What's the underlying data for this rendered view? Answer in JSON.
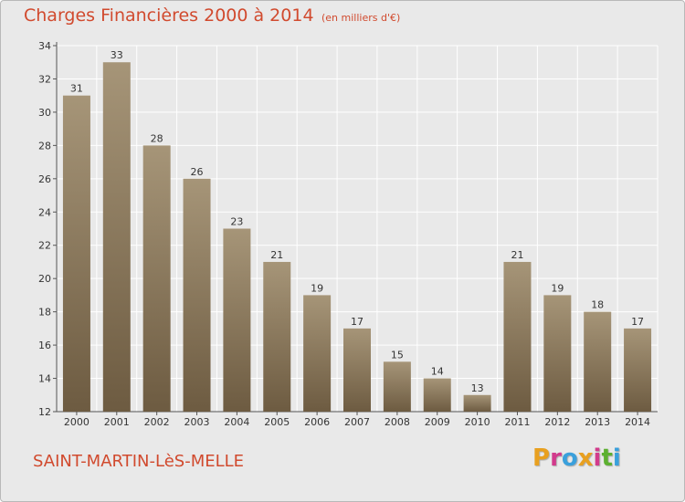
{
  "header": {
    "title": "Charges Financières 2000 à 2014",
    "unit": "(en milliers d'€)"
  },
  "footer": {
    "commune": "SAINT-MARTIN-LèS-MELLE",
    "brand": "Proxiti",
    "brand_colors": [
      "#e8a020",
      "#d23b8c",
      "#3aa0dc",
      "#e8a020",
      "#d23b8c",
      "#5cb030",
      "#3aa0dc"
    ]
  },
  "colors": {
    "bar_top": "#a69578",
    "bar_bottom": "#6d5b41",
    "plot_background": "#e9e9e9",
    "grid": "#ffffff",
    "title": "#d14a2e"
  },
  "chart_data": {
    "type": "bar",
    "title": "Charges Financières 2000 à 2014",
    "xlabel": "",
    "ylabel": "",
    "categories": [
      "2000",
      "2001",
      "2002",
      "2003",
      "2004",
      "2005",
      "2006",
      "2007",
      "2008",
      "2009",
      "2010",
      "2011",
      "2012",
      "2013",
      "2014"
    ],
    "values": [
      31,
      33,
      28,
      26,
      23,
      21,
      19,
      17,
      15,
      14,
      13,
      21,
      19,
      18,
      17
    ],
    "ylim": [
      12,
      34
    ],
    "yticks": [
      12,
      14,
      16,
      18,
      20,
      22,
      24,
      26,
      28,
      30,
      32,
      34
    ],
    "grid": true,
    "legend": "none"
  }
}
